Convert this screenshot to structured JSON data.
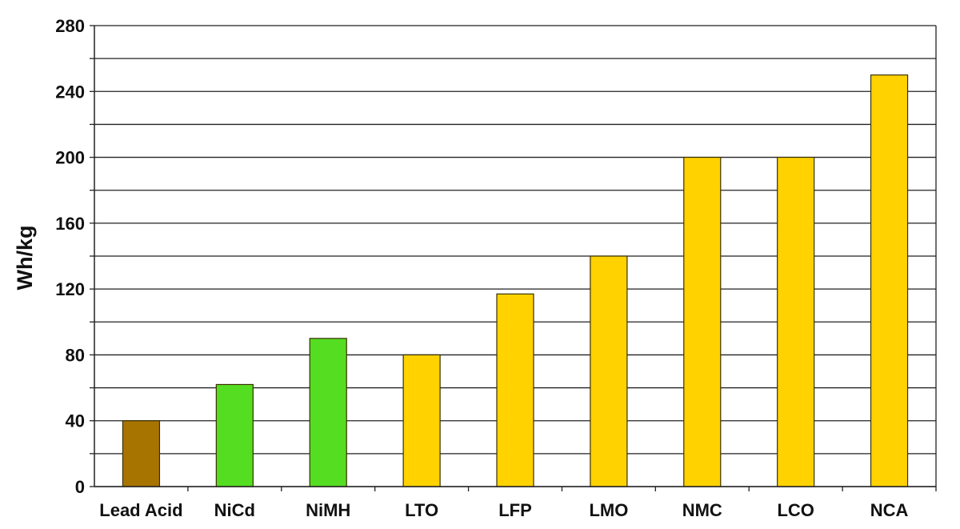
{
  "chart_data": {
    "type": "bar",
    "title": "",
    "xlabel": "",
    "ylabel": "Wh/kg",
    "ylim": [
      0,
      280
    ],
    "yticks": [
      "0",
      "40",
      "80",
      "120",
      "160",
      "200",
      "240",
      "280"
    ],
    "minor_gridline_step": 20,
    "grid": true,
    "legend": "none",
    "categories": [
      "Lead Acid",
      "NiCd",
      "NiMH",
      "LTO",
      "LFP",
      "LMO",
      "NMC",
      "LCO",
      "NCA"
    ],
    "values": [
      40,
      62,
      90,
      80,
      117,
      140,
      200,
      200,
      250
    ],
    "bar_colors": [
      "#a87400",
      "#55dd22",
      "#55dd22",
      "#ffd200",
      "#ffd200",
      "#ffd200",
      "#ffd200",
      "#ffd200",
      "#ffd200"
    ]
  }
}
